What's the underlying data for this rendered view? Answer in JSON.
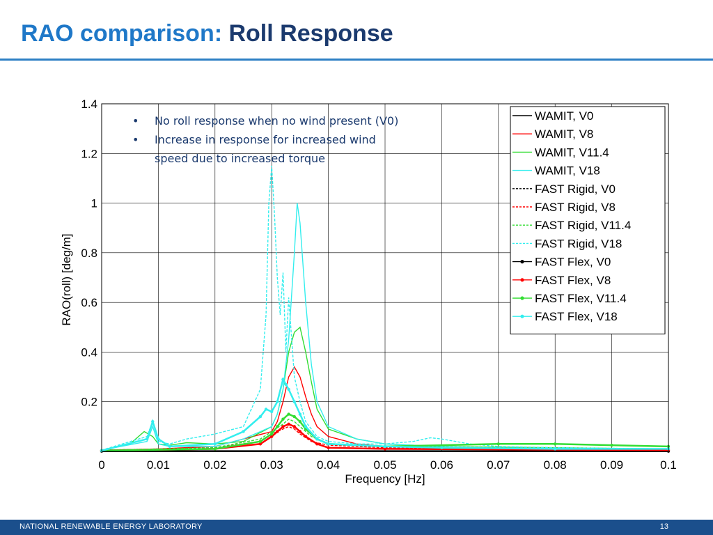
{
  "slide": {
    "title_accent": "RAO comparison: ",
    "title_main": "Roll Response",
    "footer_org": "NATIONAL RENEWABLE ENERGY LABORATORY",
    "page_number": "13"
  },
  "annotations": [
    "No roll response when no wind present (V0)",
    "Increase in response for increased wind speed due to increased torque"
  ],
  "chart_data": {
    "type": "line",
    "xlabel": "Frequency [Hz]",
    "ylabel": "RAO(roll) [deg/m]",
    "xlim": [
      0,
      0.1
    ],
    "ylim": [
      0,
      1.4
    ],
    "xticks": [
      0,
      0.01,
      0.02,
      0.03,
      0.04,
      0.05,
      0.06,
      0.07,
      0.08,
      0.09,
      0.1
    ],
    "xtick_labels": [
      "0",
      "0.01",
      "0.02",
      "0.03",
      "0.04",
      "0.05",
      "0.06",
      "0.07",
      "0.08",
      "0.09",
      "0.1"
    ],
    "yticks": [
      0.2,
      0.4,
      0.6,
      0.8,
      1.0,
      1.2,
      1.4
    ],
    "ytick_labels": [
      "0.2",
      "0.4",
      "0.6",
      "0.8",
      "1",
      "1.2",
      "1.4"
    ],
    "grid": true,
    "legend_position": "top-right",
    "series": [
      {
        "name": "WAMIT, V0",
        "color": "#000000",
        "style": "solid",
        "x": [
          0,
          0.1
        ],
        "y": [
          0,
          0
        ]
      },
      {
        "name": "WAMIT, V8",
        "color": "#ff0000",
        "style": "solid",
        "x": [
          0,
          0.01,
          0.02,
          0.03,
          0.031,
          0.032,
          0.033,
          0.034,
          0.035,
          0.036,
          0.037,
          0.038,
          0.04,
          0.045,
          0.05,
          0.06,
          0.08,
          0.1
        ],
        "y": [
          0.005,
          0.01,
          0.02,
          0.08,
          0.12,
          0.2,
          0.3,
          0.34,
          0.3,
          0.22,
          0.15,
          0.1,
          0.06,
          0.03,
          0.02,
          0.015,
          0.01,
          0.01
        ]
      },
      {
        "name": "WAMIT, V11.4",
        "color": "#33dd33",
        "style": "solid",
        "x": [
          0,
          0.005,
          0.0075,
          0.009,
          0.01,
          0.012,
          0.015,
          0.02,
          0.025,
          0.03,
          0.031,
          0.032,
          0.033,
          0.034,
          0.035,
          0.036,
          0.037,
          0.038,
          0.04,
          0.045,
          0.05,
          0.06,
          0.08,
          0.1
        ],
        "y": [
          0.005,
          0.03,
          0.08,
          0.06,
          0.03,
          0.025,
          0.035,
          0.03,
          0.04,
          0.1,
          0.15,
          0.25,
          0.4,
          0.48,
          0.5,
          0.4,
          0.28,
          0.17,
          0.09,
          0.05,
          0.03,
          0.02,
          0.015,
          0.01
        ]
      },
      {
        "name": "WAMIT, V18",
        "color": "#33eeee",
        "style": "solid",
        "x": [
          0,
          0.008,
          0.009,
          0.01,
          0.012,
          0.02,
          0.025,
          0.03,
          0.031,
          0.032,
          0.033,
          0.034,
          0.0345,
          0.035,
          0.036,
          0.037,
          0.038,
          0.04,
          0.045,
          0.05,
          0.06,
          0.08,
          0.1
        ],
        "y": [
          0.005,
          0.04,
          0.1,
          0.03,
          0.02,
          0.02,
          0.05,
          0.1,
          0.15,
          0.25,
          0.45,
          0.8,
          1.0,
          0.92,
          0.6,
          0.35,
          0.2,
          0.1,
          0.05,
          0.03,
          0.02,
          0.01,
          0.01
        ]
      },
      {
        "name": "FAST Rigid, V0",
        "color": "#000000",
        "style": "dashed",
        "x": [
          0,
          0.1
        ],
        "y": [
          0.002,
          0.002
        ]
      },
      {
        "name": "FAST Rigid, V8",
        "color": "#ff0000",
        "style": "dashed",
        "x": [
          0,
          0.02,
          0.028,
          0.03,
          0.032,
          0.033,
          0.034,
          0.035,
          0.037,
          0.04,
          0.05,
          0.1
        ],
        "y": [
          0.005,
          0.015,
          0.04,
          0.07,
          0.09,
          0.1,
          0.09,
          0.07,
          0.04,
          0.025,
          0.015,
          0.01
        ]
      },
      {
        "name": "FAST Rigid, V11.4",
        "color": "#33dd33",
        "style": "dashed",
        "x": [
          0,
          0.02,
          0.028,
          0.03,
          0.032,
          0.033,
          0.034,
          0.035,
          0.037,
          0.04,
          0.05,
          0.1
        ],
        "y": [
          0.005,
          0.015,
          0.05,
          0.08,
          0.11,
          0.13,
          0.12,
          0.1,
          0.06,
          0.03,
          0.02,
          0.01
        ]
      },
      {
        "name": "FAST Rigid, V18",
        "color": "#33eeee",
        "style": "dashed",
        "x": [
          0,
          0.008,
          0.009,
          0.0095,
          0.01,
          0.012,
          0.015,
          0.02,
          0.025,
          0.028,
          0.029,
          0.0295,
          0.03,
          0.0305,
          0.031,
          0.0315,
          0.032,
          0.0325,
          0.033,
          0.034,
          0.035,
          0.036,
          0.038,
          0.04,
          0.045,
          0.05,
          0.055,
          0.058,
          0.06,
          0.065,
          0.07,
          0.08,
          0.1
        ],
        "y": [
          0.005,
          0.06,
          0.12,
          0.08,
          0.04,
          0.03,
          0.05,
          0.07,
          0.1,
          0.25,
          0.55,
          1.0,
          1.15,
          0.95,
          0.7,
          0.55,
          0.72,
          0.4,
          0.62,
          0.3,
          0.2,
          0.12,
          0.06,
          0.04,
          0.03,
          0.03,
          0.04,
          0.055,
          0.05,
          0.03,
          0.02,
          0.015,
          0.01
        ]
      },
      {
        "name": "FAST Flex, V0",
        "color": "#000000",
        "style": "marker",
        "x": [
          0,
          0.1
        ],
        "y": [
          0.001,
          0.001
        ]
      },
      {
        "name": "FAST Flex, V8",
        "color": "#ff0000",
        "style": "marker",
        "x": [
          0,
          0.02,
          0.028,
          0.03,
          0.031,
          0.032,
          0.033,
          0.034,
          0.035,
          0.036,
          0.038,
          0.04,
          0.05,
          0.1
        ],
        "y": [
          0.003,
          0.01,
          0.03,
          0.06,
          0.08,
          0.1,
          0.11,
          0.1,
          0.08,
          0.06,
          0.03,
          0.015,
          0.01,
          0.005
        ]
      },
      {
        "name": "FAST Flex, V11.4",
        "color": "#33dd33",
        "style": "marker",
        "x": [
          0,
          0.02,
          0.028,
          0.03,
          0.031,
          0.032,
          0.033,
          0.034,
          0.035,
          0.036,
          0.038,
          0.04,
          0.05,
          0.07,
          0.08,
          0.09,
          0.1
        ],
        "y": [
          0.003,
          0.01,
          0.04,
          0.07,
          0.1,
          0.13,
          0.15,
          0.14,
          0.12,
          0.09,
          0.05,
          0.03,
          0.02,
          0.03,
          0.03,
          0.025,
          0.02
        ]
      },
      {
        "name": "FAST Flex, V18",
        "color": "#33eeee",
        "style": "marker",
        "x": [
          0,
          0.008,
          0.009,
          0.01,
          0.012,
          0.02,
          0.025,
          0.028,
          0.029,
          0.03,
          0.031,
          0.032,
          0.0325,
          0.033,
          0.034,
          0.035,
          0.036,
          0.038,
          0.04,
          0.05,
          0.06,
          0.08,
          0.1
        ],
        "y": [
          0.003,
          0.05,
          0.12,
          0.05,
          0.02,
          0.03,
          0.08,
          0.14,
          0.17,
          0.16,
          0.2,
          0.29,
          0.27,
          0.25,
          0.2,
          0.15,
          0.1,
          0.05,
          0.03,
          0.02,
          0.015,
          0.01,
          0.01
        ]
      }
    ]
  }
}
